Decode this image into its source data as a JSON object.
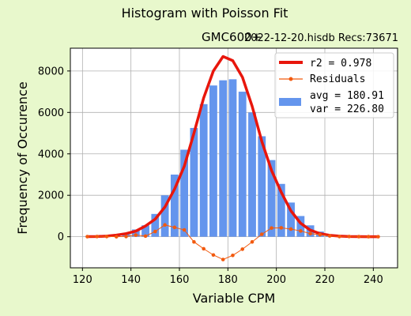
{
  "chart_data": {
    "type": "bar",
    "title": "Histogram with Poisson Fit",
    "subtitle_device": "GMC600+",
    "subtitle_file": "2022-12-20.hisdb  Recs:73671",
    "xlabel": "Variable CPM",
    "ylabel": "Frequency of Occurence",
    "xlim": [
      115,
      250
    ],
    "ylim": [
      -1500,
      9100
    ],
    "x_ticks": [
      120,
      140,
      160,
      180,
      200,
      220,
      240
    ],
    "y_ticks": [
      0,
      2000,
      4000,
      6000,
      8000
    ],
    "grid": true,
    "legend_position": "top-right",
    "bar_width": 3.2,
    "colors": {
      "bars": "#6495ed",
      "fit": "#e8160c",
      "residuals": "#f25a0f",
      "background": "#e8f8cc",
      "plot_bg": "#ffffff",
      "grid": "#b0b0b0"
    },
    "series": [
      {
        "name": "Histogram",
        "x": [
          122,
          126,
          130,
          134,
          138,
          142,
          146,
          150,
          154,
          158,
          162,
          166,
          170,
          174,
          178,
          182,
          186,
          190,
          194,
          198,
          202,
          206,
          210,
          214,
          218,
          222,
          226,
          230,
          234,
          238,
          242
        ],
        "values": [
          10,
          20,
          40,
          80,
          160,
          350,
          550,
          1100,
          2000,
          3000,
          4200,
          5250,
          6400,
          7300,
          7550,
          7600,
          7000,
          6000,
          4850,
          3700,
          2550,
          1650,
          1000,
          550,
          250,
          100,
          40,
          20,
          10,
          5,
          2
        ]
      },
      {
        "name": "Fit",
        "legend_label": "r2  = 0.978",
        "x": [
          122,
          126,
          130,
          134,
          138,
          142,
          146,
          150,
          154,
          158,
          162,
          166,
          170,
          174,
          178,
          182,
          186,
          190,
          194,
          198,
          202,
          206,
          210,
          214,
          218,
          222,
          226,
          230,
          234,
          238,
          242
        ],
        "values": [
          5,
          10,
          30,
          80,
          150,
          270,
          520,
          850,
          1430,
          2300,
          3400,
          5000,
          6700,
          8000,
          8700,
          8500,
          7700,
          6300,
          4600,
          3200,
          2150,
          1250,
          650,
          320,
          150,
          70,
          30,
          10,
          5,
          2,
          1
        ]
      },
      {
        "name": "Residuals",
        "legend_label": "Residuals",
        "x": [
          122,
          126,
          130,
          134,
          138,
          142,
          146,
          150,
          154,
          158,
          162,
          166,
          170,
          174,
          178,
          182,
          186,
          190,
          194,
          198,
          202,
          206,
          210,
          214,
          218,
          222,
          226,
          230,
          234,
          238,
          242
        ],
        "values": [
          5,
          10,
          10,
          0,
          10,
          80,
          30,
          250,
          570,
          450,
          330,
          -250,
          -580,
          -880,
          -1100,
          -900,
          -600,
          -250,
          120,
          420,
          430,
          370,
          280,
          150,
          100,
          40,
          10,
          10,
          5,
          3,
          1
        ]
      }
    ],
    "legend_entries": [
      "r2  = 0.978",
      "Residuals"
    ],
    "legend_stats": [
      "avg = 180.91",
      "var = 226.80"
    ]
  }
}
